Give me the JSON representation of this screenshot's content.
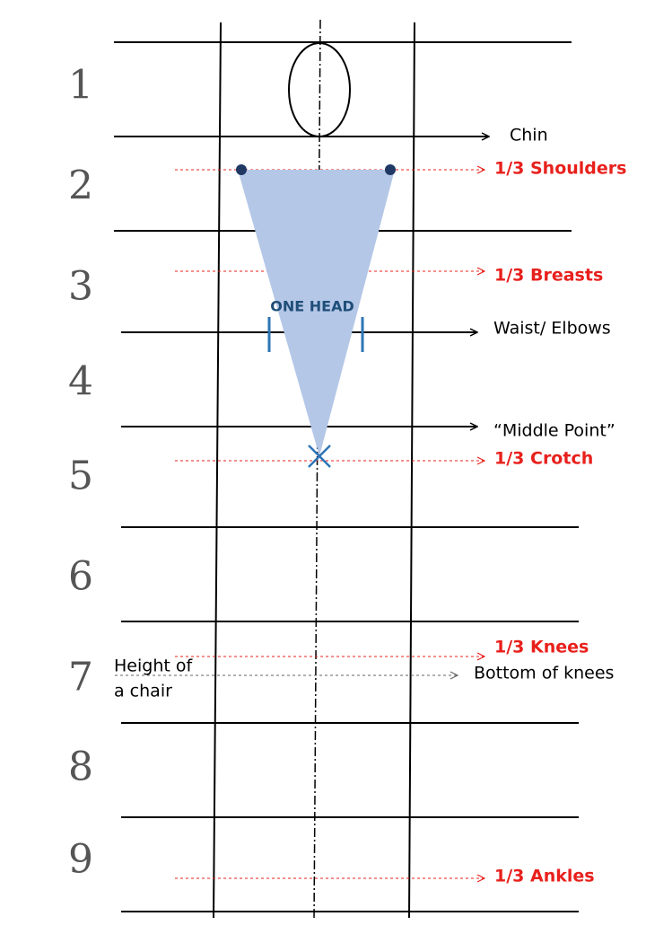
{
  "row_numbers": [
    "1",
    "2",
    "3",
    "4",
    "5",
    "6",
    "7",
    "8",
    "9"
  ],
  "figure": {
    "width_label": "ONE HEAD"
  },
  "annotations": {
    "chin": "Chin",
    "shoulders": "1/3  Shoulders",
    "breasts": "1/3  Breasts",
    "waist": "Waist/ Elbows",
    "middle": "“Middle Point”",
    "crotch": "1/3 Crotch",
    "knees": "1/3 Knees",
    "chair": [
      "Height of",
      "a chair"
    ],
    "bottom_knees": "Bottom of knees",
    "ankles": "1/3 Ankles"
  }
}
